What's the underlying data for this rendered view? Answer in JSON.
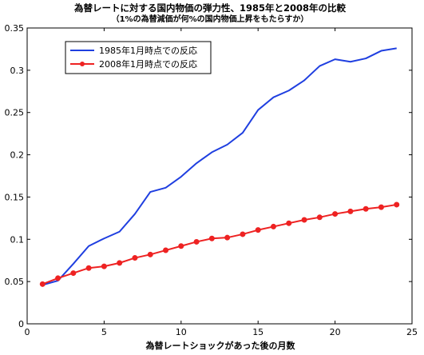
{
  "chart_data": {
    "type": "line",
    "title": "為替レートに対する国内物価の弾力性、1985年と2008年の比較",
    "subtitle": "（1%の為替減価が何%の国内物価上昇をもたらすか）",
    "xlabel": "為替レートショックがあった後の月数",
    "ylabel": "",
    "xlim": [
      0,
      25
    ],
    "ylim": [
      0,
      0.35
    ],
    "x_ticks": [
      0,
      5,
      10,
      15,
      20,
      25
    ],
    "y_ticks": [
      0,
      0.05,
      0.1,
      0.15,
      0.2,
      0.25,
      0.3,
      0.35
    ],
    "x_tick_labels": [
      "0",
      "5",
      "10",
      "15",
      "20",
      "25"
    ],
    "y_tick_labels": [
      "0",
      "0.05",
      "0.1",
      "0.15",
      "0.2",
      "0.25",
      "0.3",
      "0.35"
    ],
    "grid": false,
    "legend_position": "top-left",
    "x": [
      1,
      2,
      3,
      4,
      5,
      6,
      7,
      8,
      9,
      10,
      11,
      12,
      13,
      14,
      15,
      16,
      17,
      18,
      19,
      20,
      21,
      22,
      23,
      24
    ],
    "series": [
      {
        "name": "1985年1月時点での反応",
        "color": "#1f3fe0",
        "marker": "none",
        "values": [
          0.046,
          0.051,
          0.071,
          0.092,
          0.101,
          0.109,
          0.13,
          0.156,
          0.161,
          0.174,
          0.19,
          0.203,
          0.212,
          0.226,
          0.253,
          0.268,
          0.276,
          0.288,
          0.305,
          0.313,
          0.31,
          0.314,
          0.323,
          0.326
        ]
      },
      {
        "name": "2008年1月時点での反応",
        "color": "#ee2222",
        "marker": "circle",
        "values": [
          0.047,
          0.054,
          0.06,
          0.066,
          0.068,
          0.072,
          0.078,
          0.082,
          0.087,
          0.092,
          0.097,
          0.101,
          0.102,
          0.106,
          0.111,
          0.115,
          0.119,
          0.123,
          0.126,
          0.13,
          0.133,
          0.136,
          0.138,
          0.141
        ]
      }
    ]
  }
}
